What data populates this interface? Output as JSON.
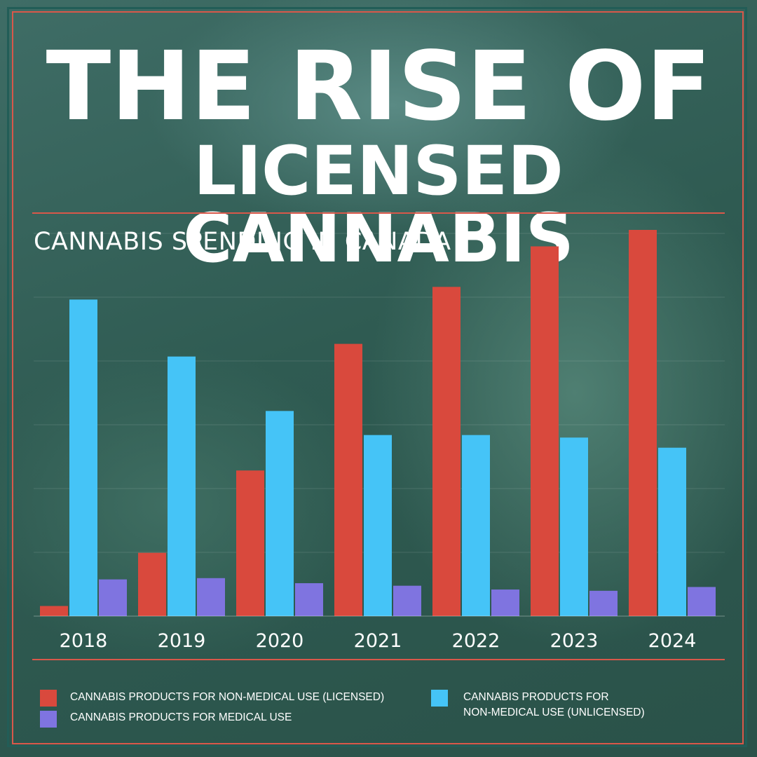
{
  "title": {
    "line1": "THE RISE OF",
    "line2": "LICENSED CANNABIS"
  },
  "colors": {
    "licensed": "#d9493d",
    "unlicensed": "#45c4f7",
    "medical": "#7f74e0",
    "accent_rule": "#d9584a",
    "text": "#ffffff"
  },
  "chart_data": {
    "type": "bar",
    "title": "CANNABIS SPENDING IN CANADA",
    "categories": [
      "2018",
      "2019",
      "2020",
      "2021",
      "2022",
      "2023",
      "2024"
    ],
    "series": [
      {
        "name": "CANNABIS PRODUCTS FOR NON-MEDICAL USE (LICENSED)",
        "color": "#d9493d",
        "values": [
          0.8,
          5.0,
          11.5,
          21.5,
          26.0,
          29.2,
          30.5
        ]
      },
      {
        "name": "CANNABIS PRODUCTS FOR NON-MEDICAL USE (UNLICENSED)",
        "color": "#45c4f7",
        "values": [
          25.0,
          20.5,
          16.2,
          14.3,
          14.3,
          14.1,
          13.3
        ]
      },
      {
        "name": "CANNABIS PRODUCTS FOR MEDICAL USE",
        "color": "#7f74e0",
        "values": [
          2.9,
          3.0,
          2.6,
          2.4,
          2.1,
          2.0,
          2.3
        ]
      }
    ],
    "ylim": [
      0,
      30.5
    ],
    "grid": true,
    "xlabel": "",
    "ylabel": "",
    "legend_position": "bottom"
  },
  "legend": {
    "item1_line1": "CANNABIS PRODUCTS FOR NON-MEDICAL USE (LICENSED)",
    "item2_line1": "CANNABIS PRODUCTS FOR MEDICAL USE",
    "item3_line1": "CANNABIS PRODUCTS FOR",
    "item3_line2": "NON-MEDICAL USE (UNLICENSED)"
  }
}
